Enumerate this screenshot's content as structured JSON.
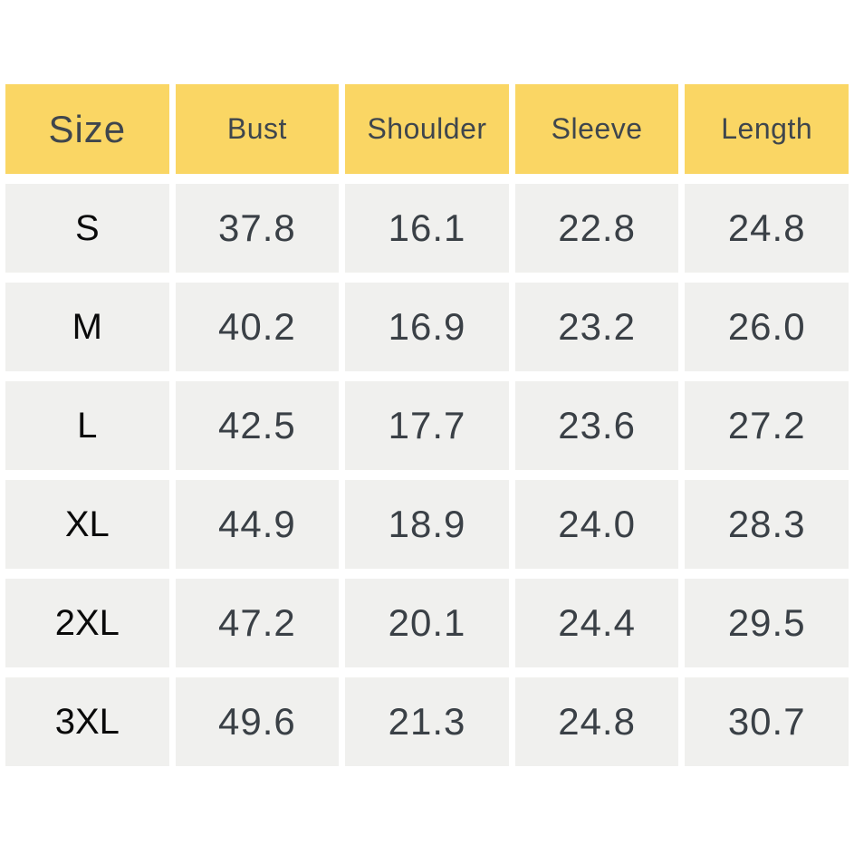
{
  "colors": {
    "header_bg": "#FAD664",
    "cell_bg": "#F0F0EE",
    "header_text": "#3F464D",
    "value_text": "#3A4046",
    "size_label_text": "#0A0A0A",
    "background": "#FFFFFF"
  },
  "chart_data": {
    "type": "table",
    "columns": [
      "Size",
      "Bust",
      "Shoulder",
      "Sleeve",
      "Length"
    ],
    "rows": [
      {
        "size": "S",
        "values": [
          "37.8",
          "16.1",
          "22.8",
          "24.8"
        ]
      },
      {
        "size": "M",
        "values": [
          "40.2",
          "16.9",
          "23.2",
          "26.0"
        ]
      },
      {
        "size": "L",
        "values": [
          "42.5",
          "17.7",
          "23.6",
          "27.2"
        ]
      },
      {
        "size": "XL",
        "values": [
          "44.9",
          "18.9",
          "24.0",
          "28.3"
        ]
      },
      {
        "size": "2XL",
        "values": [
          "47.2",
          "20.1",
          "24.4",
          "29.5"
        ]
      },
      {
        "size": "3XL",
        "values": [
          "49.6",
          "21.3",
          "24.8",
          "30.7"
        ]
      }
    ]
  }
}
